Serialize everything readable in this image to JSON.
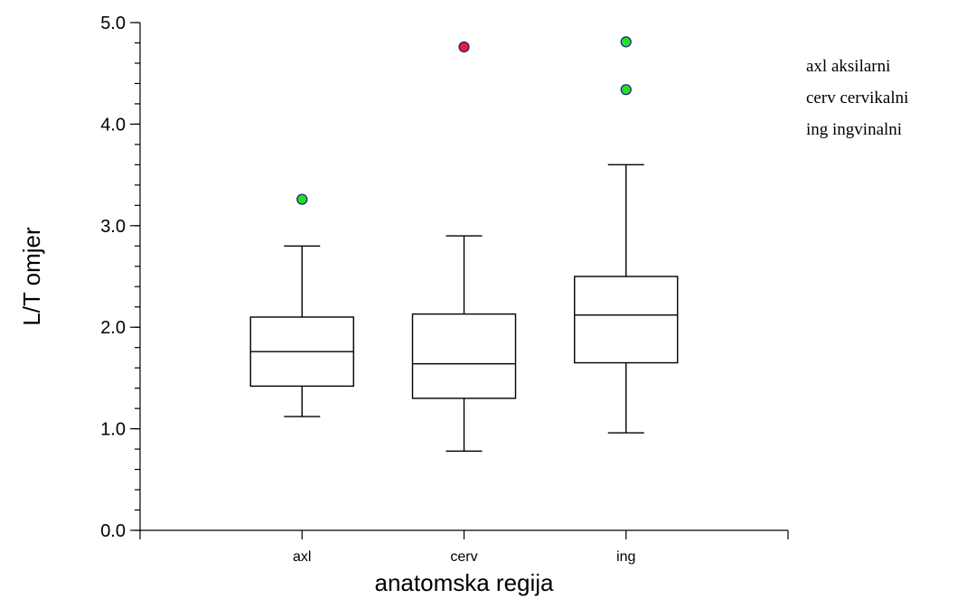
{
  "chart_data": {
    "type": "box",
    "title": "",
    "xlabel": "anatomska regija",
    "ylabel": "L/T omjer",
    "ylim": [
      0,
      5
    ],
    "yticks": [
      0,
      1,
      2,
      3,
      4,
      5
    ],
    "ytick_labels": [
      "0.0",
      "1.0",
      "2.0",
      "3.0",
      "4.0",
      "5.0"
    ],
    "y_minor_step": 0.2,
    "x_range": [
      0,
      4
    ],
    "categories": [
      "axl",
      "cerv",
      "ing"
    ],
    "boxes": [
      {
        "category": "axl",
        "whisker_low": 1.12,
        "q1": 1.42,
        "median": 1.76,
        "q3": 2.1,
        "whisker_high": 2.8,
        "outliers": [
          {
            "value": 3.26,
            "color": "#22e022"
          }
        ]
      },
      {
        "category": "cerv",
        "whisker_low": 0.78,
        "q1": 1.3,
        "median": 1.64,
        "q3": 2.13,
        "whisker_high": 2.9,
        "outliers": [
          {
            "value": 4.76,
            "color": "#e8202a"
          }
        ]
      },
      {
        "category": "ing",
        "whisker_low": 0.96,
        "q1": 1.65,
        "median": 2.12,
        "q3": 2.5,
        "whisker_high": 3.6,
        "outliers": [
          {
            "value": 4.81,
            "color": "#22e022"
          },
          {
            "value": 4.34,
            "color": "#22e022"
          }
        ]
      }
    ],
    "legend": {
      "position": "top-right",
      "entries": [
        "axl aksilarni",
        "cerv cervikalni",
        "ing ingvinalni"
      ]
    },
    "grid": false
  }
}
